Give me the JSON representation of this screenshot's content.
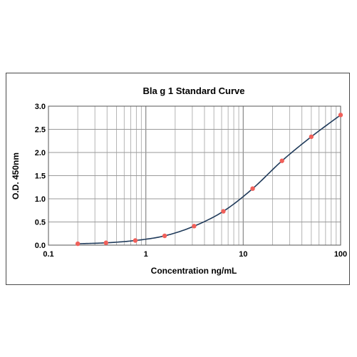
{
  "chart_data": {
    "type": "scatter",
    "title": "Bla g 1 Standard Curve",
    "xlabel": "Concentration ng/mL",
    "ylabel": "O.D. 450nm",
    "xscale": "log",
    "xlim": [
      0.1,
      100
    ],
    "ylim": [
      0,
      3.0
    ],
    "x_tick_labels": [
      "0.1",
      "1",
      "10",
      "100"
    ],
    "y_tick_labels": [
      "0.0",
      "0.5",
      "1.0",
      "1.5",
      "2.0",
      "2.5",
      "3.0"
    ],
    "grid": true,
    "legend": "none",
    "series": [
      {
        "type": "scatter",
        "x": [
          0.2,
          0.39,
          0.78,
          1.56,
          3.13,
          6.25,
          12.5,
          25,
          50,
          100
        ],
        "y": [
          0.03,
          0.05,
          0.1,
          0.2,
          0.41,
          0.73,
          1.22,
          1.82,
          2.34,
          2.81
        ],
        "color": "#f0605a"
      },
      {
        "type": "line",
        "fit": "4PL",
        "color": "#1f3a5a"
      }
    ]
  }
}
